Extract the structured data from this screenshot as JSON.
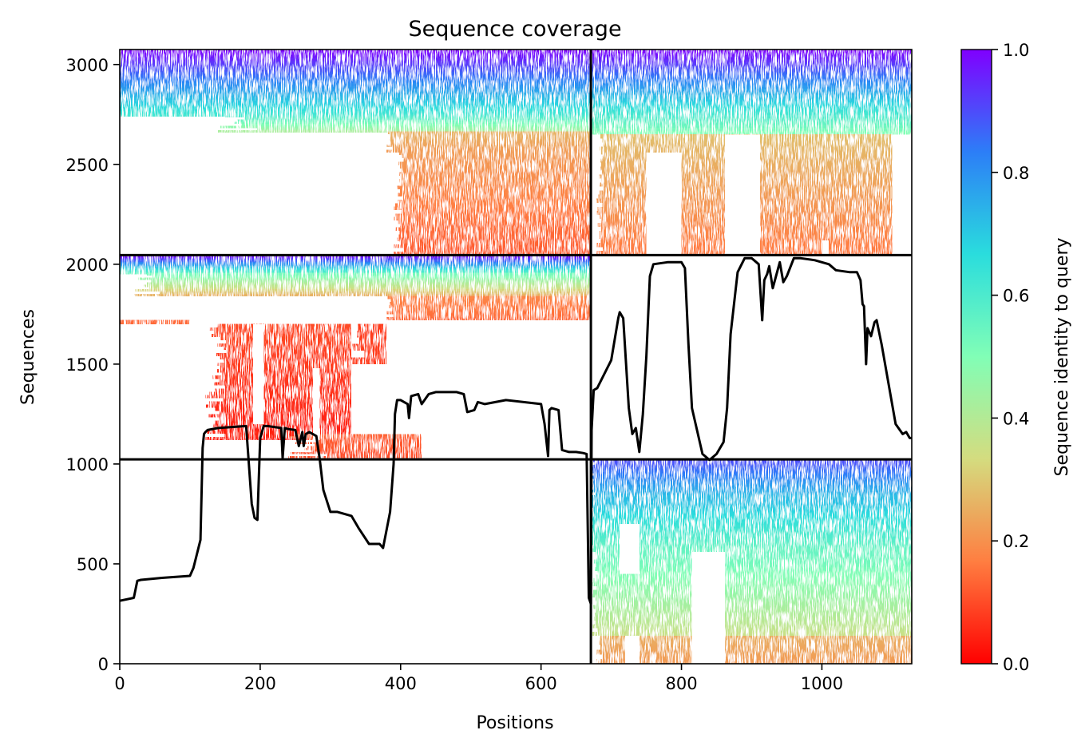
{
  "chart_data": {
    "type": "heatmap",
    "title": "Sequence coverage",
    "xlabel": "Positions",
    "ylabel": "Sequences",
    "colorbar_label": "Sequence identity to query",
    "xlim": [
      0,
      1128
    ],
    "ylim": [
      0,
      3075
    ],
    "x_ticks": [
      0,
      200,
      400,
      600,
      800,
      1000
    ],
    "y_ticks": [
      0,
      500,
      1000,
      1500,
      2000,
      2500,
      3000
    ],
    "colorbar_ticks": [
      0.0,
      0.2,
      0.4,
      0.6,
      0.8,
      1.0
    ],
    "colorbar_tick_labels": [
      "0.0",
      "0.2",
      "0.4",
      "0.6",
      "0.8",
      "1.0"
    ],
    "colormap": "rainbow_r",
    "colormap_colors": [
      "#ff0000",
      "#ff7e41",
      "#d4dc7f",
      "#81feb6",
      "#2adddd",
      "#2c7ef7",
      "#8000ff"
    ],
    "grid": false,
    "domain_separators": {
      "positions": [
        671
      ],
      "sequences": [
        1023,
        2046
      ]
    },
    "coverage_line": {
      "color": "#000000",
      "x": [
        0,
        20,
        25,
        30,
        60,
        100,
        105,
        110,
        115,
        118,
        120,
        122,
        125,
        140,
        180,
        188,
        192,
        196,
        200,
        205,
        210,
        230,
        232,
        235,
        240,
        250,
        255,
        260,
        262,
        265,
        270,
        275,
        280,
        285,
        290,
        300,
        310,
        330,
        340,
        355,
        370,
        375,
        385,
        390,
        392,
        395,
        400,
        410,
        412,
        415,
        425,
        430,
        440,
        450,
        480,
        490,
        495,
        505,
        510,
        520,
        550,
        600,
        605,
        610,
        612,
        615,
        625,
        630,
        640,
        650,
        660,
        665,
        668,
        671,
        672,
        675,
        680,
        700,
        710,
        712,
        717,
        725,
        730,
        735,
        740,
        745,
        750,
        755,
        760,
        780,
        800,
        805,
        810,
        815,
        830,
        840,
        850,
        860,
        865,
        870,
        880,
        890,
        900,
        910,
        915,
        918,
        922,
        925,
        930,
        940,
        945,
        950,
        960,
        970,
        990,
        1000,
        1010,
        1020,
        1040,
        1050,
        1055,
        1058,
        1060,
        1063,
        1065,
        1070,
        1075,
        1078,
        1085,
        1095,
        1105,
        1115,
        1120,
        1125,
        1128
      ],
      "y": [
        315,
        330,
        415,
        420,
        430,
        440,
        480,
        550,
        620,
        1080,
        1150,
        1160,
        1170,
        1180,
        1190,
        800,
        730,
        720,
        1130,
        1190,
        1190,
        1180,
        1030,
        1180,
        1175,
        1170,
        1090,
        1160,
        1090,
        1150,
        1160,
        1150,
        1140,
        1020,
        870,
        760,
        760,
        740,
        680,
        600,
        600,
        580,
        760,
        1000,
        1250,
        1320,
        1320,
        1300,
        1230,
        1340,
        1350,
        1300,
        1350,
        1360,
        1360,
        1350,
        1260,
        1270,
        1310,
        1300,
        1320,
        1300,
        1200,
        1040,
        1270,
        1280,
        1270,
        1070,
        1060,
        1060,
        1055,
        1050,
        330,
        300,
        1170,
        1370,
        1380,
        1520,
        1730,
        1760,
        1730,
        1280,
        1150,
        1180,
        1060,
        1250,
        1540,
        1940,
        2000,
        2010,
        2010,
        1980,
        1600,
        1280,
        1050,
        1020,
        1050,
        1110,
        1280,
        1650,
        1960,
        2030,
        2030,
        2000,
        1720,
        1920,
        1950,
        1990,
        1880,
        2010,
        1910,
        1940,
        2030,
        2030,
        2020,
        2010,
        2000,
        1970,
        1960,
        1960,
        1920,
        1800,
        1790,
        1500,
        1680,
        1640,
        1710,
        1720,
        1600,
        1400,
        1200,
        1150,
        1160,
        1130,
        1130
      ]
    }
  }
}
